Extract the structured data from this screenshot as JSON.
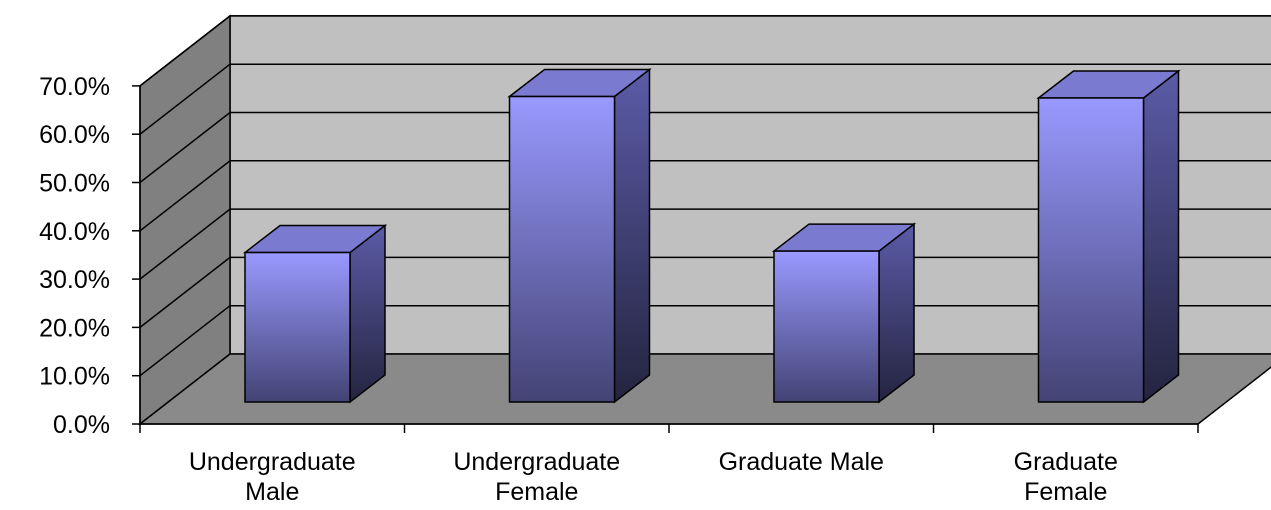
{
  "chart_data": {
    "type": "bar",
    "title": "",
    "xlabel": "",
    "ylabel": "",
    "categories": [
      [
        "Undergraduate",
        "Male"
      ],
      [
        "Undergraduate",
        "Female"
      ],
      [
        "Graduate Male"
      ],
      [
        "Graduate",
        "Female"
      ]
    ],
    "values": [
      35.5,
      67.8,
      35.8,
      67.5
    ],
    "ylim": [
      0,
      70
    ],
    "yticks": [
      "0.0%",
      "10.0%",
      "20.0%",
      "30.0%",
      "40.0%",
      "50.0%",
      "60.0%",
      "70.0%"
    ],
    "grid": true,
    "legend": "none",
    "colors": {
      "bar_top": "#9999ff",
      "bar_bottom": "#434375",
      "bar_cap": "#7a7ad0",
      "bar_side_top": "#5b5ba8",
      "bar_side_bottom": "#24243f",
      "back_wall": "#c0c0c0",
      "side_wall": "#808080",
      "floor": "#8a8a8a"
    }
  }
}
